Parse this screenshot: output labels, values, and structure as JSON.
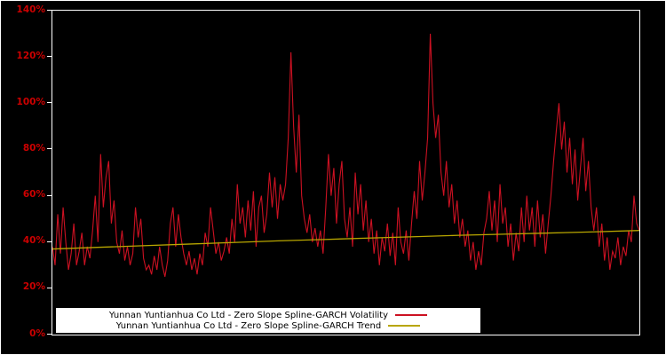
{
  "chart_data": {
    "type": "line",
    "title": "",
    "xlabel": "",
    "ylabel": "",
    "ylim": [
      0,
      140
    ],
    "yticks": [
      "0%",
      "20%",
      "40%",
      "60%",
      "80%",
      "100%",
      "120%",
      "140%"
    ],
    "grid": false,
    "legend_position": "bottom-left-inside",
    "colors": {
      "background": "#000000",
      "plot_border": "#ffffff",
      "tick_label": "#cc0000",
      "legend_background": "#ffffff",
      "legend_text": "#000000"
    },
    "series": [
      {
        "name": "Yunnan Yuntianhua Co Ltd - Zero Slope Spline-GARCH Volatility",
        "color": "#cc1122",
        "stroke_width": 1.1,
        "values": [
          38,
          30,
          52,
          35,
          55,
          40,
          28,
          35,
          48,
          30,
          36,
          44,
          30,
          38,
          33,
          45,
          60,
          40,
          78,
          55,
          68,
          75,
          48,
          58,
          40,
          35,
          45,
          32,
          38,
          30,
          35,
          55,
          42,
          50,
          33,
          28,
          30,
          26,
          34,
          28,
          38,
          30,
          25,
          32,
          48,
          55,
          38,
          52,
          42,
          35,
          30,
          36,
          28,
          33,
          26,
          35,
          30,
          44,
          38,
          55,
          45,
          35,
          40,
          32,
          36,
          42,
          35,
          50,
          40,
          65,
          48,
          55,
          42,
          58,
          45,
          62,
          38,
          55,
          60,
          44,
          52,
          70,
          55,
          68,
          50,
          65,
          58,
          65,
          85,
          122,
          90,
          70,
          95,
          60,
          50,
          44,
          52,
          40,
          46,
          38,
          45,
          35,
          55,
          78,
          60,
          72,
          48,
          65,
          75,
          50,
          42,
          55,
          38,
          70,
          52,
          65,
          45,
          58,
          40,
          50,
          35,
          45,
          30,
          42,
          36,
          48,
          34,
          44,
          30,
          55,
          40,
          35,
          45,
          32,
          48,
          62,
          50,
          75,
          58,
          70,
          85,
          130,
          100,
          85,
          95,
          70,
          60,
          75,
          55,
          65,
          48,
          58,
          42,
          50,
          38,
          45,
          32,
          40,
          28,
          36,
          30,
          44,
          50,
          62,
          45,
          58,
          40,
          65,
          48,
          55,
          38,
          48,
          32,
          44,
          36,
          55,
          40,
          60,
          45,
          55,
          38,
          58,
          42,
          52,
          35,
          48,
          60,
          75,
          88,
          100,
          80,
          92,
          70,
          85,
          65,
          80,
          58,
          72,
          85,
          62,
          75,
          55,
          45,
          55,
          38,
          48,
          32,
          42,
          28,
          36,
          33,
          42,
          30,
          38,
          34,
          45,
          40,
          60,
          48,
          45
        ]
      },
      {
        "name": "Yunnan Yuntianhua Co Ltd - Zero Slope Spline-GARCH Trend",
        "color": "#b8a600",
        "stroke_width": 1.3,
        "values": [
          37,
          37.7,
          38.4,
          39.1,
          39.8,
          40.5,
          41.1,
          41.7,
          42.3,
          42.9,
          43.4,
          43.9,
          44.4,
          45
        ]
      }
    ]
  }
}
